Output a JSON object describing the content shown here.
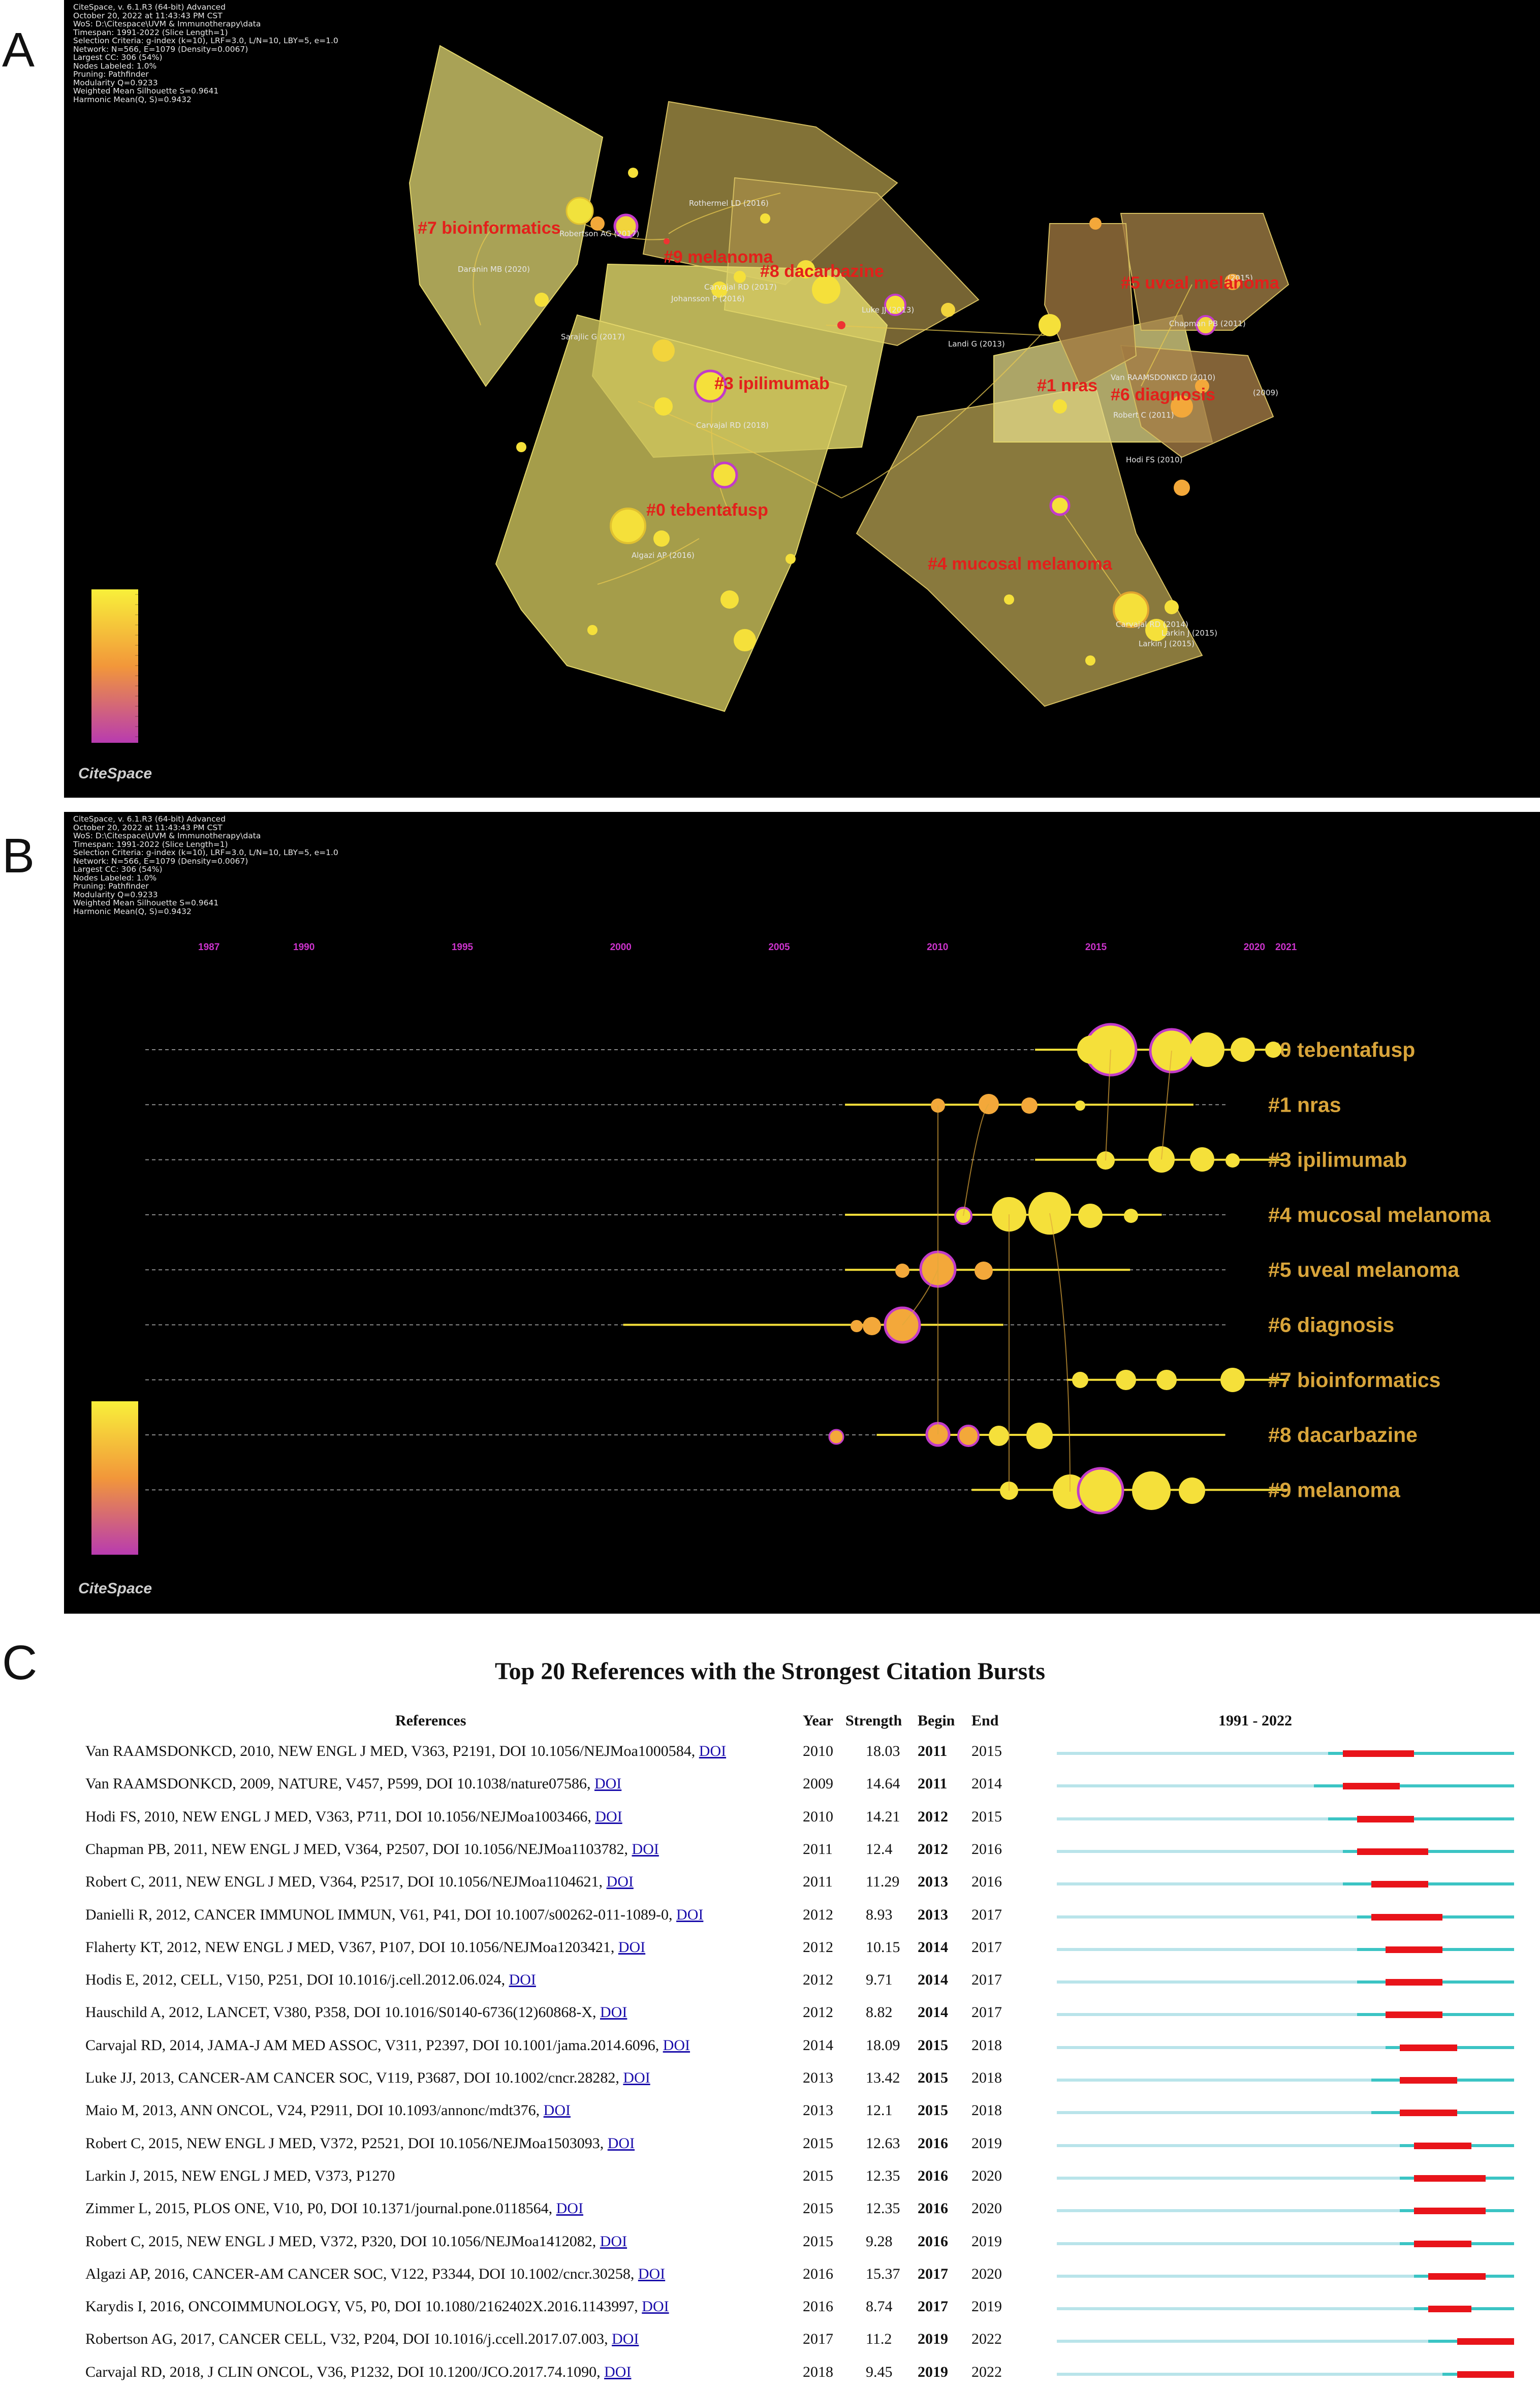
{
  "panels": {
    "a": {
      "letter": "A"
    },
    "b": {
      "letter": "B"
    },
    "c": {
      "letter": "C"
    }
  },
  "citespace_header": {
    "lines": [
      "CiteSpace, v. 6.1.R3 (64-bit) Advanced",
      "October 20, 2022 at 11:43:43 PM CST",
      "WoS: D:\\Citespace\\UVM & Immunotherapy\\data",
      "Timespan: 1991-2022 (Slice Length=1)",
      "Selection Criteria: g-index (k=10), LRF=3.0, L/N=10, LBY=5, e=1.0",
      "Network: N=566, E=1079 (Density=0.0067)",
      "Largest CC: 306 (54%)",
      "Nodes Labeled: 1.0%",
      "Pruning: Pathfinder",
      "Modularity Q=0.9233",
      "Weighted Mean Silhouette S=0.9641",
      "Harmonic Mean(Q, S)=0.9432"
    ],
    "logo": "CiteSpace"
  },
  "colors": {
    "background": "#000000",
    "node_yellow": "#f5e03a",
    "node_orange": "#f2a33a",
    "centrality_ring": "#c23bc9",
    "cluster_label_red": "#e3201b",
    "timeline_label": "#d8a43a",
    "year_label": "#cc33cc",
    "burst_red": "#e8141a",
    "burst_cyan": "#3bc4c4",
    "burst_light": "#b9e4ea"
  },
  "chart_data": [
    {
      "type": "scatter",
      "title": "Co-citation cluster network",
      "clusters": [
        {
          "id": 0,
          "label": "#0 tebentafusp"
        },
        {
          "id": 1,
          "label": "#1 nras"
        },
        {
          "id": 3,
          "label": "#3 ipilimumab"
        },
        {
          "id": 4,
          "label": "#4 mucosal melanoma"
        },
        {
          "id": 5,
          "label": "#5 uveal melanoma"
        },
        {
          "id": 6,
          "label": "#6 diagnosis"
        },
        {
          "id": 7,
          "label": "#7 bioinformatics"
        },
        {
          "id": 8,
          "label": "#8 dacarbazine"
        },
        {
          "id": 9,
          "label": "#9 melanoma"
        }
      ],
      "node_labels": [
        "Rothermel LD (2016)",
        "Robertson AG (2017)",
        "Daranin MB (2020)",
        "Carvajal RD (2017)",
        "Johansson P (2016)",
        "Luke JJ (2013)",
        "Sarajlic G (2017)",
        "Carvajal RD (2018)",
        "Algazi AP (2016)",
        "Larkin J (2015)",
        "Carvajal RD (2014)",
        "Larkin J (2015)",
        "Chapman PB (2011)",
        "Van RAAMSDONKCD (2010)",
        "Robert C (2011)",
        "Hodi FS (2010)",
        "Landi G (2013)",
        "(2009)",
        "(2015)"
      ],
      "legend": "color scale 1991-2022"
    },
    {
      "type": "scatter",
      "title": "Timeline view",
      "x_ticks": [
        1987,
        1990,
        1995,
        2000,
        2005,
        2010,
        2015,
        2020,
        2021
      ],
      "xlim": [
        1987,
        2021
      ],
      "clusters": [
        "#0 tebentafusp",
        "#1 nras",
        "#3 ipilimumab",
        "#4 mucosal melanoma",
        "#5 uveal melanoma",
        "#6 diagnosis",
        "#7 bioinformatics",
        "#8 dacarbazine",
        "#9 melanoma"
      ],
      "cluster_year_span": [
        {
          "cluster": "#0 tebentafusp",
          "start": 2013,
          "end": 2021
        },
        {
          "cluster": "#1 nras",
          "start": 2007,
          "end": 2018
        },
        {
          "cluster": "#3 ipilimumab",
          "start": 2013,
          "end": 2021
        },
        {
          "cluster": "#4 mucosal melanoma",
          "start": 2007,
          "end": 2017
        },
        {
          "cluster": "#5 uveal melanoma",
          "start": 2007,
          "end": 2016
        },
        {
          "cluster": "#6 diagnosis",
          "start": 2000,
          "end": 2012
        },
        {
          "cluster": "#7 bioinformatics",
          "start": 2014,
          "end": 2021
        },
        {
          "cluster": "#8 dacarbazine",
          "start": 2008,
          "end": 2019
        },
        {
          "cluster": "#9 melanoma",
          "start": 2011,
          "end": 2021
        }
      ]
    },
    {
      "type": "table",
      "title": "Top 20 References with the Strongest Citation Bursts",
      "columns": [
        "References",
        "Year",
        "Strength",
        "Begin",
        "End",
        "1991 - 2022"
      ],
      "range": [
        1991,
        2022
      ],
      "rows": [
        {
          "ref": "Van RAAMSDONKCD, 2010, NEW ENGL J MED, V363, P2191, DOI 10.1056/NEJMoa1000584, ",
          "doi": "DOI",
          "year": 2010,
          "strength": "18.03",
          "begin": 2011,
          "end": 2015
        },
        {
          "ref": "Van RAAMSDONKCD, 2009, NATURE, V457, P599, DOI 10.1038/nature07586, ",
          "doi": "DOI",
          "year": 2009,
          "strength": "14.64",
          "begin": 2011,
          "end": 2014
        },
        {
          "ref": "Hodi FS, 2010, NEW ENGL J MED, V363, P711, DOI 10.1056/NEJMoa1003466, ",
          "doi": "DOI",
          "year": 2010,
          "strength": "14.21",
          "begin": 2012,
          "end": 2015
        },
        {
          "ref": "Chapman PB, 2011, NEW ENGL J MED, V364, P2507, DOI 10.1056/NEJMoa1103782, ",
          "doi": "DOI",
          "year": 2011,
          "strength": "12.4",
          "begin": 2012,
          "end": 2016
        },
        {
          "ref": "Robert C, 2011, NEW ENGL J MED, V364, P2517, DOI 10.1056/NEJMoa1104621, ",
          "doi": "DOI",
          "year": 2011,
          "strength": "11.29",
          "begin": 2013,
          "end": 2016
        },
        {
          "ref": "Danielli R, 2012, CANCER IMMUNOL IMMUN, V61, P41, DOI 10.1007/s00262-011-1089-0, ",
          "doi": "DOI",
          "year": 2012,
          "strength": "8.93",
          "begin": 2013,
          "end": 2017
        },
        {
          "ref": "Flaherty KT, 2012, NEW ENGL J MED, V367, P107, DOI 10.1056/NEJMoa1203421, ",
          "doi": "DOI",
          "year": 2012,
          "strength": "10.15",
          "begin": 2014,
          "end": 2017
        },
        {
          "ref": "Hodis E, 2012, CELL, V150, P251, DOI 10.1016/j.cell.2012.06.024, ",
          "doi": "DOI",
          "year": 2012,
          "strength": "9.71",
          "begin": 2014,
          "end": 2017
        },
        {
          "ref": "Hauschild A, 2012, LANCET, V380, P358, DOI 10.1016/S0140-6736(12)60868-X, ",
          "doi": "DOI",
          "year": 2012,
          "strength": "8.82",
          "begin": 2014,
          "end": 2017
        },
        {
          "ref": "Carvajal RD, 2014, JAMA-J AM MED ASSOC, V311, P2397, DOI 10.1001/jama.2014.6096, ",
          "doi": "DOI",
          "year": 2014,
          "strength": "18.09",
          "begin": 2015,
          "end": 2018
        },
        {
          "ref": "Luke JJ, 2013, CANCER-AM CANCER SOC, V119, P3687, DOI 10.1002/cncr.28282, ",
          "doi": "DOI",
          "year": 2013,
          "strength": "13.42",
          "begin": 2015,
          "end": 2018
        },
        {
          "ref": "Maio M, 2013, ANN ONCOL, V24, P2911, DOI 10.1093/annonc/mdt376, ",
          "doi": "DOI",
          "year": 2013,
          "strength": "12.1",
          "begin": 2015,
          "end": 2018
        },
        {
          "ref": "Robert C, 2015, NEW ENGL J MED, V372, P2521, DOI 10.1056/NEJMoa1503093, ",
          "doi": "DOI",
          "year": 2015,
          "strength": "12.63",
          "begin": 2016,
          "end": 2019
        },
        {
          "ref": "Larkin J, 2015, NEW ENGL J MED, V373, P1270",
          "doi": "",
          "year": 2015,
          "strength": "12.35",
          "begin": 2016,
          "end": 2020
        },
        {
          "ref": "Zimmer L, 2015, PLOS ONE, V10, P0, DOI 10.1371/journal.pone.0118564, ",
          "doi": "DOI",
          "year": 2015,
          "strength": "12.35",
          "begin": 2016,
          "end": 2020
        },
        {
          "ref": "Robert C, 2015, NEW ENGL J MED, V372, P320, DOI 10.1056/NEJMoa1412082, ",
          "doi": "DOI",
          "year": 2015,
          "strength": "9.28",
          "begin": 2016,
          "end": 2019
        },
        {
          "ref": "Algazi AP, 2016, CANCER-AM CANCER SOC, V122, P3344, DOI 10.1002/cncr.30258, ",
          "doi": "DOI",
          "year": 2016,
          "strength": "15.37",
          "begin": 2017,
          "end": 2020
        },
        {
          "ref": "Karydis I, 2016, ONCOIMMUNOLOGY, V5, P0, DOI 10.1080/2162402X.2016.1143997, ",
          "doi": "DOI",
          "year": 2016,
          "strength": "8.74",
          "begin": 2017,
          "end": 2019
        },
        {
          "ref": "Robertson AG, 2017, CANCER CELL, V32, P204, DOI 10.1016/j.ccell.2017.07.003, ",
          "doi": "DOI",
          "year": 2017,
          "strength": "11.2",
          "begin": 2019,
          "end": 2022
        },
        {
          "ref": "Carvajal RD, 2018, J CLIN ONCOL, V36, P1232, DOI 10.1200/JCO.2017.74.1090, ",
          "doi": "DOI",
          "year": 2018,
          "strength": "9.45",
          "begin": 2019,
          "end": 2022
        }
      ]
    }
  ]
}
